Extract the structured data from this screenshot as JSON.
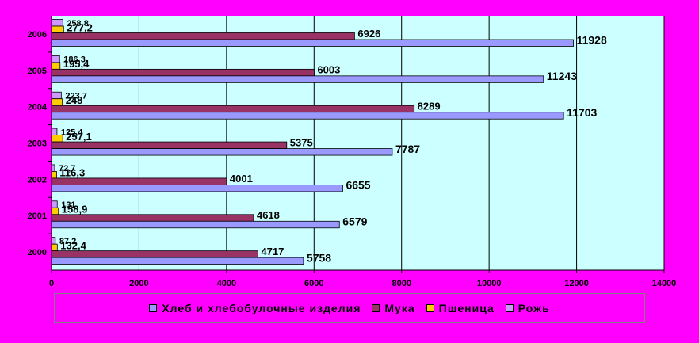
{
  "chart_data": {
    "type": "bar",
    "orientation": "horizontal",
    "categories": [
      "2000",
      "2001",
      "2002",
      "2003",
      "2004",
      "2005",
      "2006"
    ],
    "series": [
      {
        "name": "Хлеб и хлебобулочные изделия",
        "color": "#9999ff",
        "values": [
          5758,
          6579,
          6655,
          7787,
          11703,
          11243,
          11928
        ],
        "labels": [
          "5758",
          "6579",
          "6655",
          "7787",
          "11703",
          "11243",
          "11928"
        ]
      },
      {
        "name": "Мука",
        "color": "#993366",
        "values": [
          4717,
          4618,
          4001,
          5375,
          8289,
          6003,
          6926
        ],
        "labels": [
          "4717",
          "4618",
          "4001",
          "5375",
          "8289",
          "6003",
          "6926"
        ]
      },
      {
        "name": "Пшеница",
        "color": "#ffcc00",
        "values": [
          132.4,
          158.9,
          116.3,
          257.1,
          248,
          195.4,
          277.2
        ],
        "labels": [
          "132,4",
          "158,9",
          "116,3",
          "257,1",
          "248",
          "195,4",
          "277,2"
        ]
      },
      {
        "name": "Рожь",
        "color": "#cc99ff",
        "values": [
          87.2,
          131,
          72.7,
          125.4,
          223.7,
          186.3,
          258.8
        ],
        "labels": [
          "87,2",
          "131",
          "72,7",
          "125,4",
          "223,7",
          "186,3",
          "258,8"
        ]
      }
    ],
    "xlim": [
      0,
      14000
    ],
    "xticks": [
      0,
      2000,
      4000,
      6000,
      8000,
      10000,
      12000,
      14000
    ],
    "grid": true,
    "plot_bg": "#ccffff",
    "legend_position": "bottom"
  },
  "colors": {
    "page_bg": "#ff00ff",
    "plot_bg": "#ccffff"
  }
}
